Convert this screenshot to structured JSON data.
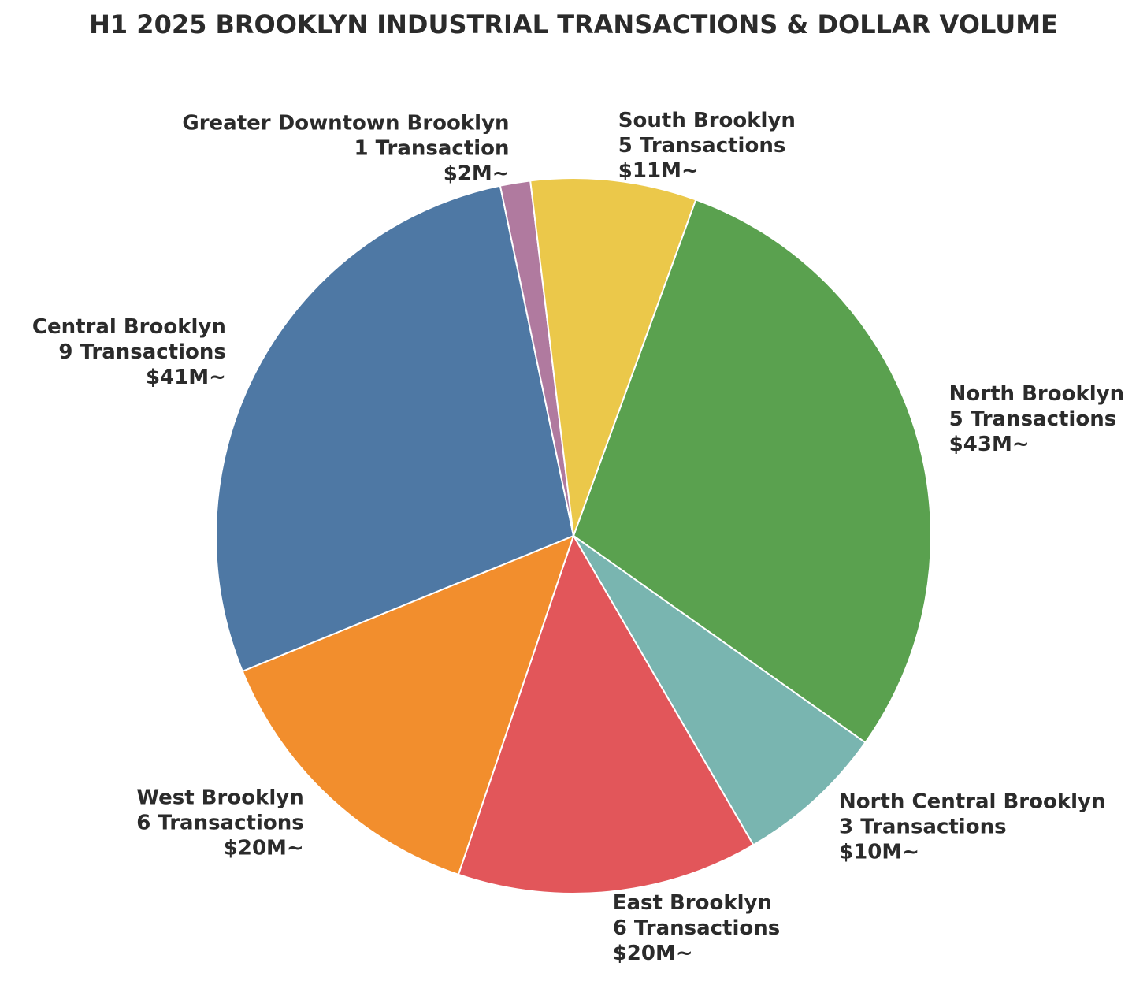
{
  "chart_data": {
    "type": "pie",
    "title": "H1 2025 BROOKLYN INDUSTRIAL TRANSACTIONS & DOLLAR VOLUME",
    "slices": [
      {
        "name": "North Brooklyn",
        "transactions_label": "5 Transactions",
        "value_label": "$43M~",
        "value": 43,
        "color": "#5aa14f"
      },
      {
        "name": "North Central Brooklyn",
        "transactions_label": "3 Transactions",
        "value_label": "$10M~",
        "value": 10,
        "color": "#79b5b0"
      },
      {
        "name": "East Brooklyn",
        "transactions_label": "6 Transactions",
        "value_label": "$20M~",
        "value": 20,
        "color": "#e2565a"
      },
      {
        "name": "West Brooklyn",
        "transactions_label": "6 Transactions",
        "value_label": "$20M~",
        "value": 20,
        "color": "#f28e2d"
      },
      {
        "name": "Central Brooklyn",
        "transactions_label": "9 Transactions",
        "value_label": "$41M~",
        "value": 41,
        "color": "#4e78a4"
      },
      {
        "name": "Greater Downtown Brooklyn",
        "transactions_label": "1 Transaction",
        "value_label": "$2M~",
        "value": 2,
        "color": "#b07a9f"
      },
      {
        "name": "South Brooklyn",
        "transactions_label": "5 Transactions",
        "value_label": "$11M~",
        "value": 11,
        "color": "#ebc84a"
      }
    ]
  }
}
